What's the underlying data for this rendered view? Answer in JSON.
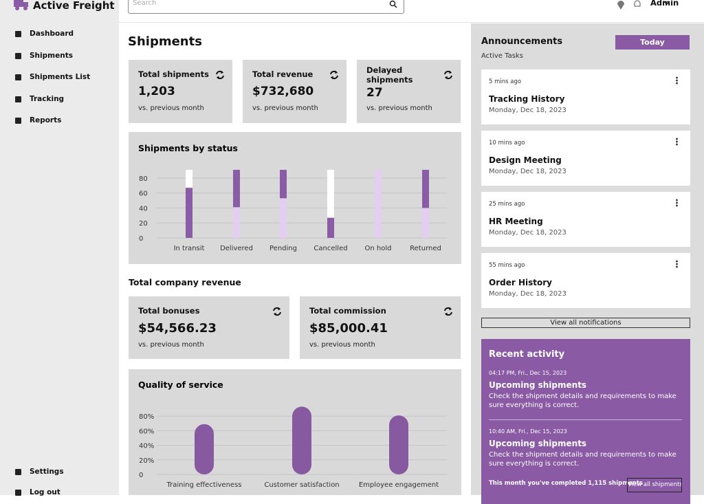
{
  "header": {
    "brand": "Active Freight",
    "search_placeholder": "Search",
    "user": "Admin"
  },
  "sidebar": {
    "nav": [
      "Dashboard",
      "Shipments",
      "Shipments List",
      "Tracking",
      "Reports"
    ],
    "bottom": [
      "Settings",
      "Log out"
    ]
  },
  "main": {
    "title": "Shipments",
    "kpis": [
      {
        "label": "Total shipments",
        "value": "1,203",
        "note": "vs. previous month"
      },
      {
        "label": "Total revenue",
        "value": "$732,680",
        "note": "vs. previous month"
      },
      {
        "label": "Delayed shipments",
        "value": "27",
        "note": "vs. previous month"
      }
    ],
    "revenue_title": "Total company revenue",
    "revenue_cards": [
      {
        "label": "Total bonuses",
        "value": "$54,566.23",
        "note": "vs. previous month"
      },
      {
        "label": "Total commission",
        "value": "$85,000.41",
        "note": "vs. previous month"
      }
    ]
  },
  "announcements": {
    "title": "Announcements",
    "filter": "Today",
    "subtitle": "Active Tasks",
    "items": [
      {
        "time": "5 mins ago",
        "title": "Tracking History",
        "date": "Monday, Dec 18, 2023"
      },
      {
        "time": "10 mins ago",
        "title": "Design Meeting",
        "date": "Monday, Dec 18, 2023"
      },
      {
        "time": "25 mins ago",
        "title": "HR Meeting",
        "date": "Monday, Dec 18, 2023"
      },
      {
        "time": "55 mins ago",
        "title": "Order History",
        "date": "Monday, Dec 18, 2023"
      }
    ],
    "view_all": "View all notifications"
  },
  "recent_activity": {
    "title": "Recent activity",
    "items": [
      {
        "time": "04:17 PM, Fri., Dec 15, 2023",
        "title": "Upcoming shipments",
        "text": "Check the shipment details and requirements to make sure everything is correct."
      },
      {
        "time": "10:40 AM, Fri., Dec 15, 2023",
        "title": "Upcoming shipments",
        "text": "Check the shipment details and requirements to make sure everything is correct."
      }
    ],
    "footer": "This month you've completed 1,115 shipments",
    "button": "View all shipments"
  },
  "chart_data": [
    {
      "type": "bar",
      "stacked": true,
      "title": "Shipments by status",
      "categories": [
        "In transit",
        "Delivered",
        "Pending",
        "Cancelled",
        "On hold",
        "Returned"
      ],
      "series": [
        {
          "color": "#e3cdf0",
          "values": [
            null,
            41,
            53,
            null,
            91,
            40
          ]
        },
        {
          "color": "#8b5ca6",
          "values": [
            67,
            50,
            38,
            27,
            null,
            51
          ]
        },
        {
          "color": "#ffffff",
          "values": [
            24,
            null,
            null,
            64,
            null,
            null
          ]
        }
      ],
      "ylim": [
        0,
        91
      ],
      "yticks": [
        0,
        20,
        40,
        60,
        80
      ],
      "grid": true
    },
    {
      "type": "bar",
      "rounded": true,
      "title": "Quality of service",
      "categories": [
        "Training effectiveness",
        "Customer satisfaction",
        "Employee engagement"
      ],
      "values": [
        69,
        93,
        81
      ],
      "color": "#8759a0",
      "ylim": [
        0,
        100
      ],
      "yticks": [
        0,
        {
          "value": 20,
          "label": "20%"
        },
        {
          "value": 40,
          "label": "40%"
        },
        {
          "value": 60,
          "label": "60%"
        },
        {
          "value": 80,
          "label": "80%"
        }
      ],
      "grid": true
    }
  ]
}
